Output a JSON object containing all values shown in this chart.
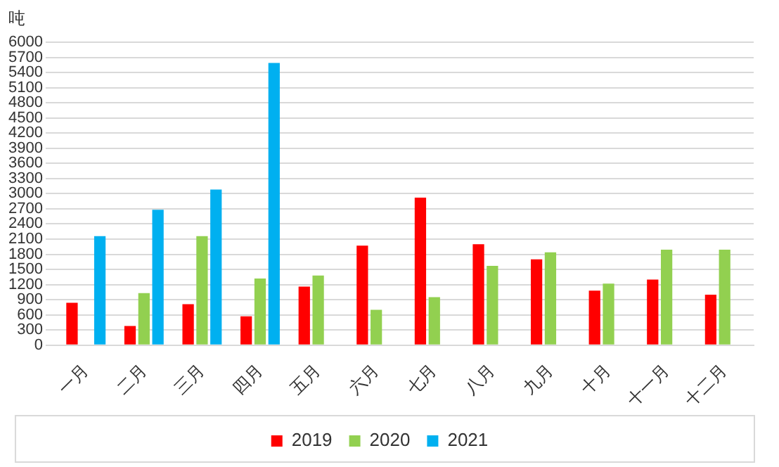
{
  "chart_data": {
    "type": "bar",
    "ylabel": "吨",
    "categories": [
      "一月",
      "二月",
      "三月",
      "四月",
      "五月",
      "六月",
      "七月",
      "八月",
      "九月",
      "十月",
      "十一月",
      "十二月"
    ],
    "series": [
      {
        "name": "2019",
        "color": "#ff0000",
        "values": [
          840,
          380,
          810,
          570,
          1160,
          1970,
          2920,
          2000,
          1700,
          1080,
          1300,
          1000
        ]
      },
      {
        "name": "2020",
        "color": "#92d050",
        "values": [
          null,
          1030,
          2160,
          1320,
          1380,
          700,
          950,
          1570,
          1840,
          1220,
          1890,
          1890
        ]
      },
      {
        "name": "2021",
        "color": "#00b0f0",
        "values": [
          2160,
          2680,
          3080,
          5590,
          null,
          null,
          null,
          null,
          null,
          null,
          null,
          null
        ]
      }
    ],
    "ylim": [
      0,
      6000
    ],
    "yticks": [
      0,
      300,
      600,
      900,
      1200,
      1500,
      1800,
      2100,
      2400,
      2700,
      3000,
      3300,
      3600,
      3900,
      4200,
      4500,
      4800,
      5100,
      5400,
      5700,
      6000
    ],
    "grid": "y",
    "legend": "bottom"
  }
}
